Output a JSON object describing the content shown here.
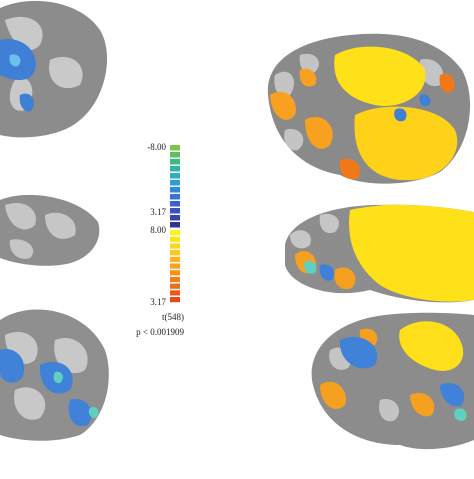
{
  "colorbar": {
    "negative": {
      "top_label": "-8.00",
      "bottom_label": "3.17"
    },
    "positive": {
      "top_label": "8.00",
      "bottom_label": "3.17"
    },
    "stat_label": "t(548)",
    "threshold_label": "p < 0.001909"
  }
}
